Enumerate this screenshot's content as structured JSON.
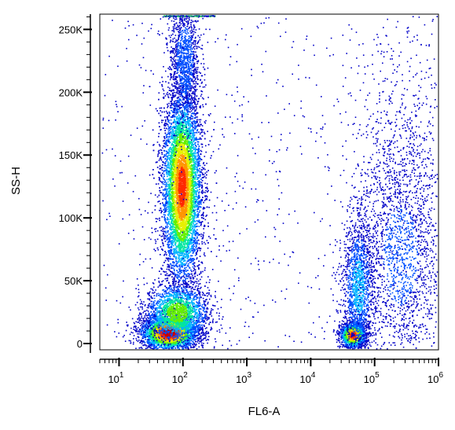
{
  "chart_data": {
    "type": "scatter",
    "subtype": "flow-cytometry-density-dot-plot",
    "xlabel": "FL6-A",
    "ylabel": "SS-H",
    "x_scale": "log",
    "xlim": [
      5,
      1000000
    ],
    "ylim": [
      -5000,
      262144
    ],
    "x_ticks": [
      {
        "value": 10,
        "base": "10",
        "exp": "1"
      },
      {
        "value": 100,
        "base": "10",
        "exp": "2"
      },
      {
        "value": 1000,
        "base": "10",
        "exp": "3"
      },
      {
        "value": 10000,
        "base": "10",
        "exp": "4"
      },
      {
        "value": 100000,
        "base": "10",
        "exp": "5"
      },
      {
        "value": 1000000,
        "base": "10",
        "exp": "6"
      }
    ],
    "y_ticks": [
      {
        "value": 0,
        "label": "0"
      },
      {
        "value": 50000,
        "label": "50K"
      },
      {
        "value": 100000,
        "label": "100K"
      },
      {
        "value": 150000,
        "label": "150K"
      },
      {
        "value": 200000,
        "label": "200K"
      },
      {
        "value": 250000,
        "label": "250K"
      }
    ],
    "grid": false,
    "legend": "none",
    "density_colors": [
      "#0000c8",
      "#0050ff",
      "#00b4ff",
      "#00e6a0",
      "#64f000",
      "#e6f000",
      "#ff9600",
      "#ff2800",
      "#c80000"
    ],
    "populations": [
      {
        "x_center": 95,
        "x_spread_decades": 0.15,
        "y_center": 125000,
        "y_spread": 38000,
        "count": 9000,
        "density": 0.85
      },
      {
        "x_center": 60,
        "x_spread_decades": 0.22,
        "y_center": 9000,
        "y_spread": 7000,
        "count": 3500,
        "density": 1.0
      },
      {
        "x_center": 80,
        "x_spread_decades": 0.25,
        "y_center": 25000,
        "y_spread": 12000,
        "count": 2000,
        "density": 0.55
      },
      {
        "x_center": 105,
        "x_spread_decades": 0.12,
        "y_center": 225000,
        "y_spread": 25000,
        "count": 1200,
        "density": 0.2
      },
      {
        "x_center": 45000,
        "x_spread_decades": 0.1,
        "y_center": 7000,
        "y_spread": 5000,
        "count": 1500,
        "density": 0.9
      },
      {
        "x_center": 55000,
        "x_spread_decades": 0.12,
        "y_center": 45000,
        "y_spread": 28000,
        "count": 1500,
        "density": 0.3
      },
      {
        "x_center": 250000,
        "x_spread_decades": 0.35,
        "y_center": 70000,
        "y_spread": 50000,
        "count": 1800,
        "density": 0.15
      },
      {
        "x_center": 250000,
        "x_spread_decades": 0.4,
        "y_center": 150000,
        "y_spread": 60000,
        "count": 500,
        "density": 0.05
      }
    ]
  }
}
